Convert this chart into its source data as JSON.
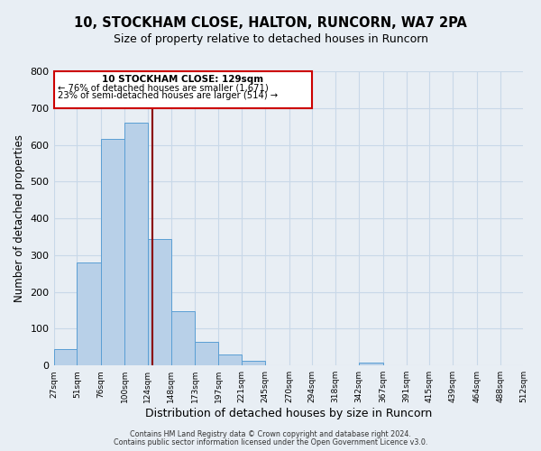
{
  "title1": "10, STOCKHAM CLOSE, HALTON, RUNCORN, WA7 2PA",
  "title2": "Size of property relative to detached houses in Runcorn",
  "xlabel": "Distribution of detached houses by size in Runcorn",
  "ylabel": "Number of detached properties",
  "bin_edges": [
    27,
    51,
    76,
    100,
    124,
    148,
    173,
    197,
    221,
    245,
    270,
    294,
    318,
    342,
    367,
    391,
    415,
    439,
    464,
    488,
    512
  ],
  "counts": [
    45,
    280,
    615,
    660,
    345,
    148,
    65,
    30,
    12,
    0,
    0,
    0,
    0,
    8,
    0,
    0,
    0,
    0,
    0,
    0
  ],
  "property_size": 129,
  "vline_color": "#8b0000",
  "bar_facecolor": "#b8d0e8",
  "bar_edgecolor": "#5a9fd4",
  "ylim": [
    0,
    800
  ],
  "yticks": [
    0,
    100,
    200,
    300,
    400,
    500,
    600,
    700,
    800
  ],
  "annotation_title": "10 STOCKHAM CLOSE: 129sqm",
  "annotation_line1": "← 76% of detached houses are smaller (1,671)",
  "annotation_line2": "23% of semi-detached houses are larger (514) →",
  "annotation_box_color": "#cc0000",
  "grid_color": "#c8d8e8",
  "background_color": "#e8eef4",
  "footnote1": "Contains HM Land Registry data © Crown copyright and database right 2024.",
  "footnote2": "Contains public sector information licensed under the Open Government Licence v3.0."
}
